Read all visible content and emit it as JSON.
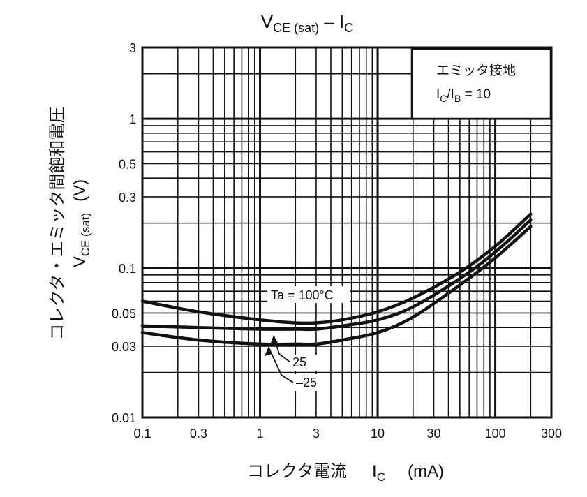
{
  "chart_data": {
    "type": "line",
    "title": {
      "main": "V",
      "sub": "CE (sat)",
      "dash": " – ",
      "main2": "I",
      "sub2": "C"
    },
    "x_axis": {
      "scale": "log",
      "range": [
        0.1,
        300
      ],
      "unit": "mA",
      "label_jp": "コレクタ電流",
      "label_sym": "I",
      "label_sub": "C",
      "label_unit": "(mA)",
      "ticks": [
        {
          "v": 0.1,
          "label": "0.1"
        },
        {
          "v": 0.3,
          "label": "0.3"
        },
        {
          "v": 1,
          "label": "1"
        },
        {
          "v": 3,
          "label": "3"
        },
        {
          "v": 10,
          "label": "10"
        },
        {
          "v": 30,
          "label": "30"
        },
        {
          "v": 100,
          "label": "100"
        },
        {
          "v": 300,
          "label": "300"
        }
      ]
    },
    "y_axis": {
      "scale": "log",
      "range": [
        0.01,
        3
      ],
      "unit": "V",
      "label_jp": "コレクタ・エミッタ間飽和電圧",
      "label_sym": "V",
      "label_sub": "CE (sat)",
      "label_unit": "(V)",
      "ticks": [
        {
          "v": 0.01,
          "label": "0.01"
        },
        {
          "v": 0.03,
          "label": "0.03"
        },
        {
          "v": 0.05,
          "label": "0.05"
        },
        {
          "v": 0.1,
          "label": "0.1"
        },
        {
          "v": 0.3,
          "label": "0.3"
        },
        {
          "v": 0.5,
          "label": "0.5"
        },
        {
          "v": 1,
          "label": "1"
        },
        {
          "v": 3,
          "label": "3"
        }
      ]
    },
    "grid": true,
    "condition_box": {
      "position": "top-right",
      "line1": "エミッタ接地",
      "line2_sym": "I",
      "line2_sub": "C",
      "line2_mid": "/I",
      "line2_sub2": "B",
      "line2_val": " = 10"
    },
    "series": [
      {
        "name": "Ta = 100°C",
        "x": [
          0.1,
          0.3,
          1,
          2,
          3,
          5,
          10,
          20,
          50,
          100,
          200
        ],
        "y": [
          0.06,
          0.051,
          0.045,
          0.043,
          0.043,
          0.045,
          0.051,
          0.063,
          0.094,
          0.14,
          0.23
        ]
      },
      {
        "name": "25",
        "x": [
          0.1,
          0.3,
          1,
          2,
          3,
          5,
          10,
          20,
          50,
          100,
          200
        ],
        "y": [
          0.041,
          0.04,
          0.039,
          0.039,
          0.039,
          0.041,
          0.045,
          0.055,
          0.085,
          0.128,
          0.21
        ]
      },
      {
        "name": "–25",
        "x": [
          0.1,
          0.3,
          1,
          2,
          3,
          5,
          10,
          20,
          50,
          100,
          200
        ],
        "y": [
          0.037,
          0.033,
          0.031,
          0.031,
          0.031,
          0.033,
          0.037,
          0.047,
          0.077,
          0.117,
          0.19
        ]
      }
    ]
  }
}
